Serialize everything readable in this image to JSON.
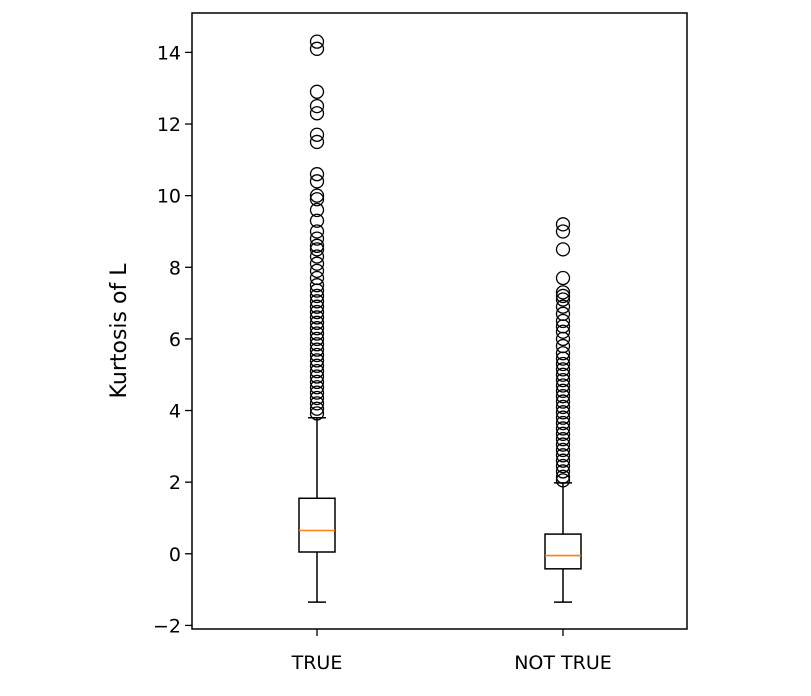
{
  "chart_data": {
    "type": "boxplot",
    "title": "",
    "xlabel": "",
    "ylabel": "Kurtosis of L",
    "ylim": [
      -2.1,
      15.1
    ],
    "yticks": [
      -2,
      0,
      2,
      4,
      6,
      8,
      10,
      12,
      14
    ],
    "ytick_labels": [
      "−2",
      "0",
      "2",
      "4",
      "6",
      "8",
      "10",
      "12",
      "14"
    ],
    "categories": [
      "TRUE",
      "NOT TRUE"
    ],
    "grid": false,
    "legend": "none",
    "colors": {
      "box": "#000000",
      "median": "#ff7f0e",
      "flier": "#000000"
    },
    "boxes": [
      {
        "label": "TRUE",
        "whisker_low": -1.35,
        "q1": 0.05,
        "median": 0.65,
        "q3": 1.55,
        "whisker_high": 3.8,
        "outliers": [
          14.3,
          14.1,
          12.9,
          12.5,
          12.3,
          11.7,
          11.5,
          10.6,
          10.4,
          10.0,
          9.9,
          9.6,
          9.3,
          9.0,
          8.8,
          8.6,
          8.5,
          8.3,
          8.1,
          7.9,
          7.7,
          7.5,
          7.35,
          7.2,
          7.05,
          6.9,
          6.75,
          6.6,
          6.45,
          6.3,
          6.15,
          6.0,
          5.85,
          5.7,
          5.55,
          5.4,
          5.25,
          5.1,
          4.95,
          4.8,
          4.65,
          4.5,
          4.35,
          4.2,
          4.05,
          3.92
        ]
      },
      {
        "label": "NOT TRUE",
        "whisker_low": -1.35,
        "q1": -0.42,
        "median": -0.05,
        "q3": 0.55,
        "whisker_high": 1.98,
        "outliers": [
          9.2,
          9.0,
          8.5,
          7.7,
          7.3,
          7.2,
          7.1,
          6.9,
          6.7,
          6.5,
          6.35,
          6.2,
          6.0,
          5.8,
          5.6,
          5.45,
          5.3,
          5.15,
          5.0,
          4.85,
          4.7,
          4.55,
          4.4,
          4.25,
          4.1,
          3.95,
          3.8,
          3.65,
          3.5,
          3.35,
          3.2,
          3.05,
          2.9,
          2.75,
          2.6,
          2.45,
          2.3,
          2.15,
          2.05
        ]
      }
    ]
  }
}
